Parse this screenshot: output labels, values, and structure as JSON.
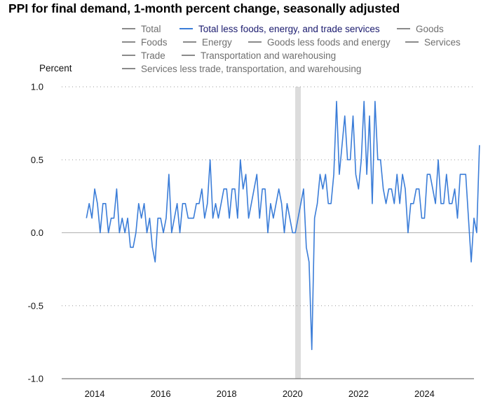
{
  "chart_data": {
    "type": "line",
    "title": "PPI for final demand, 1-month percent change, seasonally adjusted",
    "ylabel": "Percent",
    "xlabel": "",
    "ylim": [
      -1.0,
      1.0
    ],
    "xlim": [
      2013.0,
      2025.5
    ],
    "y_ticks": [
      1.0,
      0.5,
      0.0,
      -0.5,
      -1.0
    ],
    "y_tick_labels": [
      "1.0",
      "0.5",
      "0.0",
      "-0.5",
      "-1.0"
    ],
    "x_ticks": [
      2014,
      2016,
      2018,
      2020,
      2022,
      2024
    ],
    "x_tick_labels": [
      "2014",
      "2016",
      "2018",
      "2020",
      "2022",
      "2024"
    ],
    "grid": "horizontal dotted",
    "legend_position": "top",
    "legend": [
      {
        "label": "Total",
        "active": false
      },
      {
        "label": "Total less foods, energy, and trade services",
        "active": true
      },
      {
        "label": "Goods",
        "active": false
      },
      {
        "label": "Foods",
        "active": false
      },
      {
        "label": "Energy",
        "active": false
      },
      {
        "label": "Goods less foods and energy",
        "active": false
      },
      {
        "label": "Services",
        "active": false
      },
      {
        "label": "Trade",
        "active": false
      },
      {
        "label": "Transportation and warehousing",
        "active": false
      },
      {
        "label": "Services less trade, transportation, and warehousing",
        "active": false
      }
    ],
    "recession_shading": {
      "start": 2020.08,
      "end": 2020.25
    },
    "series": [
      {
        "name": "Total less foods, energy, and trade services",
        "color": "#3b7dd8",
        "start": 2013.75,
        "step_months": 1,
        "values": [
          0.1,
          0.2,
          0.1,
          0.3,
          0.2,
          0.0,
          0.2,
          0.2,
          0.0,
          0.1,
          0.1,
          0.3,
          0.0,
          0.1,
          0.0,
          0.1,
          -0.1,
          -0.1,
          0.0,
          0.2,
          0.1,
          0.2,
          0.0,
          0.1,
          -0.1,
          -0.2,
          0.1,
          0.1,
          0.0,
          0.1,
          0.4,
          0.0,
          0.1,
          0.2,
          0.0,
          0.2,
          0.2,
          0.1,
          0.1,
          0.1,
          0.2,
          0.2,
          0.3,
          0.1,
          0.2,
          0.5,
          0.1,
          0.2,
          0.1,
          0.2,
          0.3,
          0.3,
          0.1,
          0.3,
          0.3,
          0.1,
          0.5,
          0.3,
          0.4,
          0.1,
          0.2,
          0.3,
          0.4,
          0.1,
          0.3,
          0.3,
          0.0,
          0.2,
          0.1,
          0.2,
          0.3,
          0.2,
          0.0,
          0.2,
          0.1,
          0.0,
          0.0,
          0.1,
          0.2,
          0.3,
          -0.1,
          -0.2,
          -0.8,
          0.1,
          0.2,
          0.4,
          0.3,
          0.4,
          0.2,
          0.2,
          0.4,
          0.9,
          0.4,
          0.6,
          0.8,
          0.5,
          0.5,
          0.8,
          0.4,
          0.3,
          0.5,
          0.9,
          0.4,
          0.8,
          0.2,
          0.9,
          0.5,
          0.5,
          0.3,
          0.2,
          0.3,
          0.3,
          0.2,
          0.4,
          0.2,
          0.4,
          0.3,
          0.0,
          0.2,
          0.2,
          0.3,
          0.3,
          0.1,
          0.1,
          0.4,
          0.4,
          0.3,
          0.2,
          0.5,
          0.2,
          0.2,
          0.4,
          0.2,
          0.2,
          0.3,
          0.1,
          0.4,
          0.4,
          0.4,
          0.1,
          -0.2,
          0.1,
          0.0,
          0.6
        ]
      }
    ]
  }
}
